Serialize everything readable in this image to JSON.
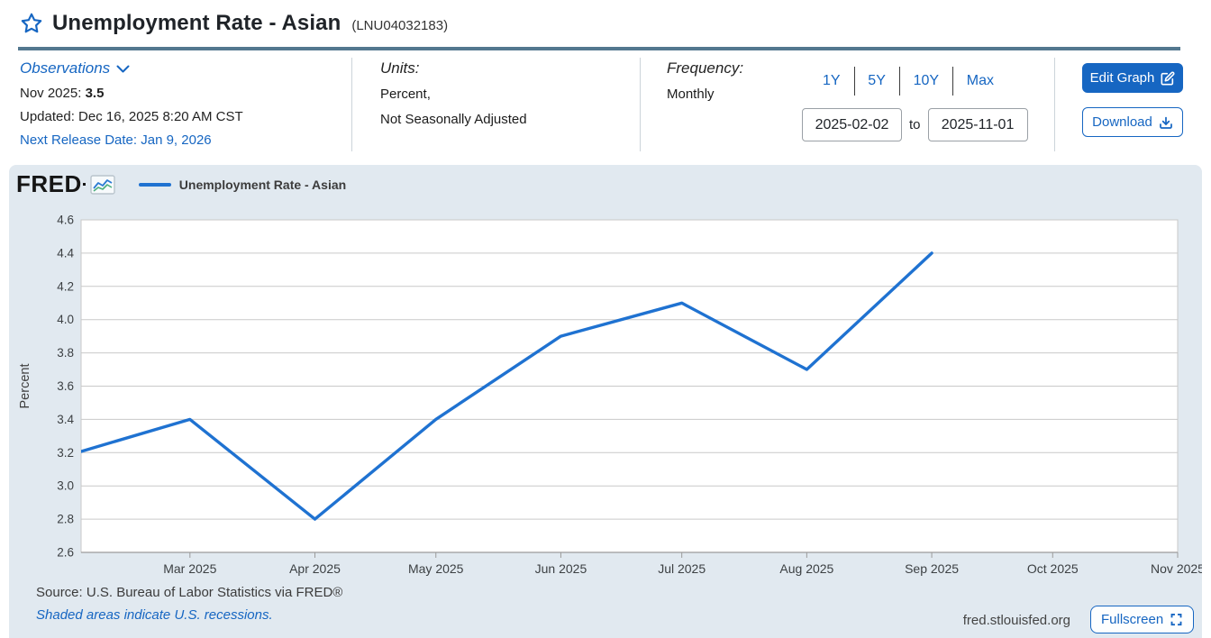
{
  "page": {
    "title": "Unemployment Rate - Asian",
    "series_id": "(LNU04032183)"
  },
  "observations": {
    "label": "Observations",
    "latest_period": "Nov 2025:",
    "latest_value": "3.5",
    "updated": "Updated: Dec 16, 2025 8:20 AM CST",
    "next_release": "Next Release Date: Jan 9, 2026"
  },
  "units": {
    "label": "Units:",
    "line1": "Percent,",
    "line2": "Not Seasonally Adjusted"
  },
  "frequency": {
    "label": "Frequency:",
    "value": "Monthly"
  },
  "range": {
    "zoom_options": [
      "1Y",
      "5Y",
      "10Y",
      "Max"
    ],
    "start_date": "2025-02-02",
    "to_label": "to",
    "end_date": "2025-11-01"
  },
  "actions": {
    "edit_graph": "Edit Graph",
    "download": "Download",
    "fullscreen": "Fullscreen"
  },
  "graph": {
    "brand": "FRED",
    "legend_label": "Unemployment Rate - Asian",
    "source_line": "Source: U.S. Bureau of Labor Statistics via FRED®",
    "recession_note": "Shaded areas indicate U.S. recessions.",
    "site": "fred.stlouisfed.org"
  },
  "colors": {
    "accent": "#1666c2",
    "line": "#1f72d1",
    "panel_bg": "#e1e9f0",
    "grid": "#c9c9c9",
    "axis": "#9b9b9b",
    "tick_text": "#3c4043",
    "title_rule": "#53788f"
  },
  "chart_data": {
    "type": "line",
    "title": "Unemployment Rate - Asian",
    "ylabel": "Percent",
    "ylim": [
      2.6,
      4.6
    ],
    "ytick_step": 0.2,
    "grid": true,
    "legend_position": "top-left",
    "x_domain_days": 272,
    "x_ticks": [
      {
        "label": "Mar 2025",
        "day": 27
      },
      {
        "label": "Apr 2025",
        "day": 58
      },
      {
        "label": "May 2025",
        "day": 88
      },
      {
        "label": "Jun 2025",
        "day": 119
      },
      {
        "label": "Jul 2025",
        "day": 149
      },
      {
        "label": "Aug 2025",
        "day": 180
      },
      {
        "label": "Sep 2025",
        "day": 211
      },
      {
        "label": "Oct 2025",
        "day": 241
      },
      {
        "label": "Nov 2025",
        "day": 272
      }
    ],
    "series": [
      {
        "name": "Unemployment Rate - Asian",
        "points": [
          {
            "date": "Feb 2025",
            "day": -1,
            "value": 3.2
          },
          {
            "date": "Mar 2025",
            "day": 27,
            "value": 3.4
          },
          {
            "date": "Apr 2025",
            "day": 58,
            "value": 2.8
          },
          {
            "date": "May 2025",
            "day": 88,
            "value": 3.4
          },
          {
            "date": "Jun 2025",
            "day": 119,
            "value": 3.9
          },
          {
            "date": "Jul 2025",
            "day": 149,
            "value": 4.1
          },
          {
            "date": "Aug 2025",
            "day": 180,
            "value": 3.7
          },
          {
            "date": "Sep 2025",
            "day": 211,
            "value": 4.4
          }
        ]
      }
    ]
  }
}
